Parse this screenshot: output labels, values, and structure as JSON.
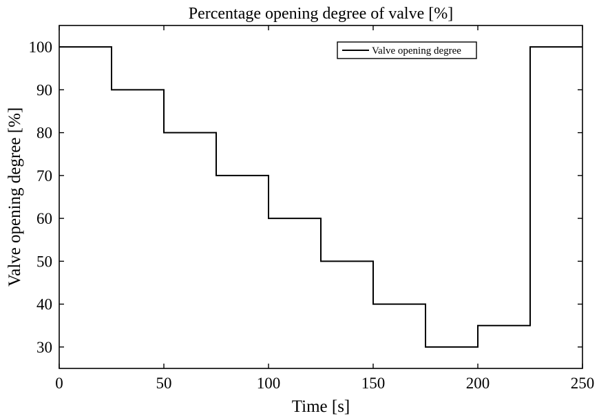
{
  "chart_data": {
    "type": "line",
    "title": "Percentage opening degree of valve [%]",
    "xlabel": "Time [s]",
    "ylabel": "Valve opening degree [%]",
    "xlim": [
      0,
      250
    ],
    "ylim": [
      25,
      105
    ],
    "xticks": [
      0,
      50,
      100,
      150,
      200,
      250
    ],
    "yticks": [
      30,
      40,
      50,
      60,
      70,
      80,
      90,
      100
    ],
    "grid": false,
    "legend": {
      "position": "top-right",
      "entries": [
        "Valve opening degree"
      ]
    },
    "line_style": "step",
    "series": [
      {
        "name": "Valve opening degree",
        "x": [
          0,
          25,
          50,
          75,
          100,
          125,
          150,
          175,
          200,
          225
        ],
        "y": [
          100,
          90,
          80,
          70,
          60,
          50,
          40,
          30,
          35,
          100
        ],
        "end_x": 250
      }
    ],
    "colors": {
      "line": "#000000",
      "axes": "#000000"
    }
  }
}
